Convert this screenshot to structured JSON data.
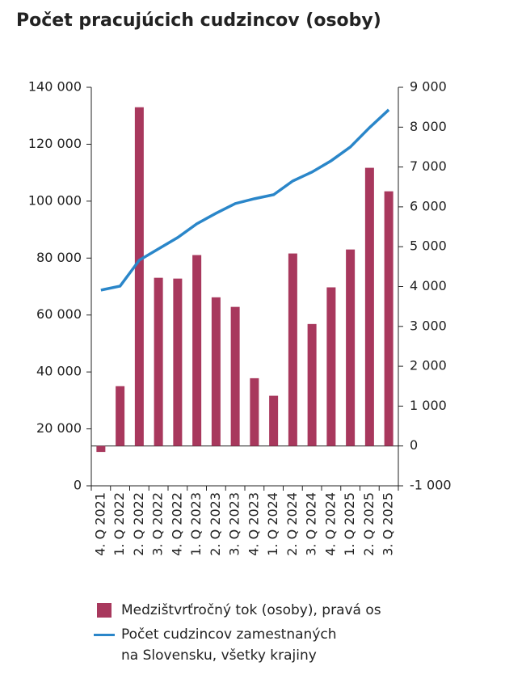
{
  "chart_data": {
    "type": "bar-line",
    "title": "Počet pracujúcich cudzincov (osoby)",
    "categories": [
      "4. Q 2021",
      "1. Q 2022",
      "2. Q 2022",
      "3. Q 2022",
      "4. Q 2022",
      "1. Q 2023",
      "2. Q 2023",
      "3. Q 2023",
      "4. Q 2023",
      "1. Q 2024",
      "2. Q 2024",
      "3. Q 2024",
      "4. Q 2024",
      "1. Q 2025",
      "2. Q 2025",
      "3. Q 2025"
    ],
    "series": [
      {
        "name": "Medzištvrťročný tok (osoby), pravá os",
        "type": "bar",
        "axis": "y2",
        "color": "#a8385d",
        "values": [
          -150,
          1500,
          8500,
          4220,
          4200,
          4790,
          3730,
          3490,
          1700,
          1260,
          4830,
          3060,
          3980,
          4930,
          6980,
          6390
        ]
      },
      {
        "name": "Počet cudzincov zamestnaných na Slovensku, všetky krajiny",
        "type": "line",
        "color": "#2a86c9",
        "values": [
          68750,
          70170,
          79260,
          83240,
          87220,
          92050,
          95740,
          99150,
          100850,
          102270,
          107100,
          110230,
          114200,
          119030,
          125850,
          132100
        ]
      }
    ],
    "ylim": [
      0,
      140000
    ],
    "yticks": [
      0,
      {
        "value": 20000,
        "label": "20 000"
      },
      {
        "value": 40000,
        "label": "40 000"
      },
      {
        "value": 60000,
        "label": "60 000"
      },
      {
        "value": 80000,
        "label": "80 000"
      },
      {
        "value": 100000,
        "label": "100 000"
      },
      {
        "value": 120000,
        "label": "120 000"
      },
      {
        "value": 140000,
        "label": "140 000"
      }
    ],
    "y2lim": [
      -1000,
      9000
    ],
    "y2ticks": [
      {
        "value": -1000,
        "label": "-1 000"
      },
      0,
      {
        "value": 1000,
        "label": "1 000"
      },
      {
        "value": 2000,
        "label": "2 000"
      },
      {
        "value": 3000,
        "label": "3 000"
      },
      {
        "value": 4000,
        "label": "4 000"
      },
      {
        "value": 5000,
        "label": "5 000"
      },
      {
        "value": 6000,
        "label": "6 000"
      },
      {
        "value": 7000,
        "label": "7 000"
      },
      {
        "value": 8000,
        "label": "8 000"
      },
      {
        "value": 9000,
        "label": "9 000"
      }
    ]
  }
}
